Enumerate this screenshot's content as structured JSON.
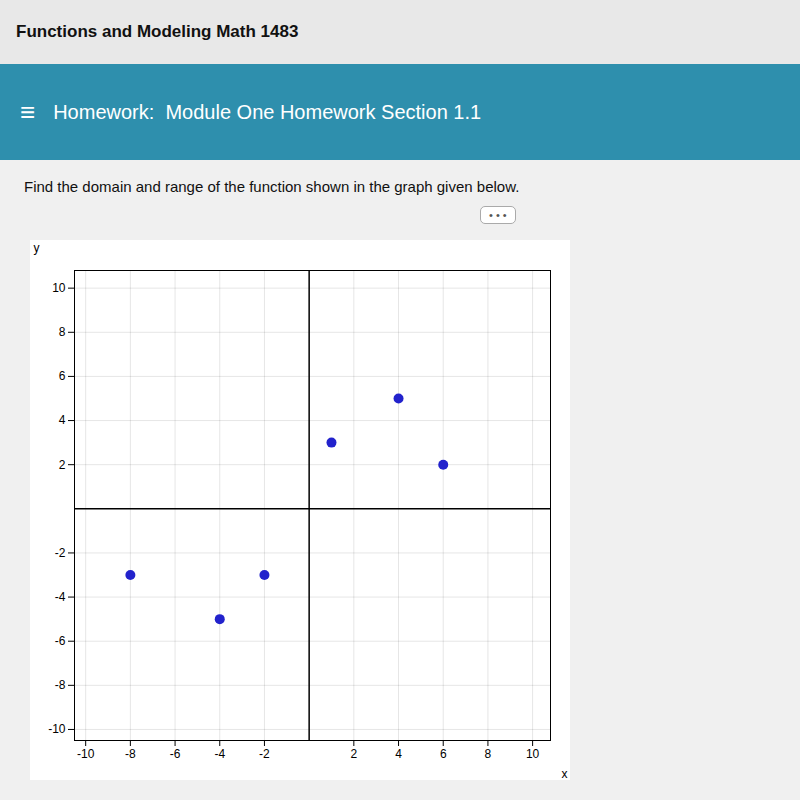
{
  "chart_data": {
    "type": "scatter",
    "title": "Functions and Modeling Math 1483",
    "subtitle": "Homework:  Module One Homework Section 1.1",
    "annotations": [
      "≡",
      "Find the domain and range of the function shown in the graph given below.",
      "• • •"
    ],
    "x_label": "x",
    "y_label": "y",
    "x": [
      -8,
      -4,
      -2,
      1,
      4,
      6
    ],
    "values": [
      -3,
      -5,
      -3,
      3,
      5,
      2
    ],
    "color": "#2222cc",
    "xlim": [
      -10.5,
      10.8
    ],
    "ylim": [
      -10.5,
      10.8
    ],
    "xticks": [
      -10,
      -8,
      -6,
      -4,
      -2,
      2,
      4,
      6,
      8,
      10
    ],
    "yticks": [
      -10,
      -8,
      -6,
      -4,
      -2,
      2,
      4,
      6,
      8,
      10
    ],
    "grid": true
  }
}
